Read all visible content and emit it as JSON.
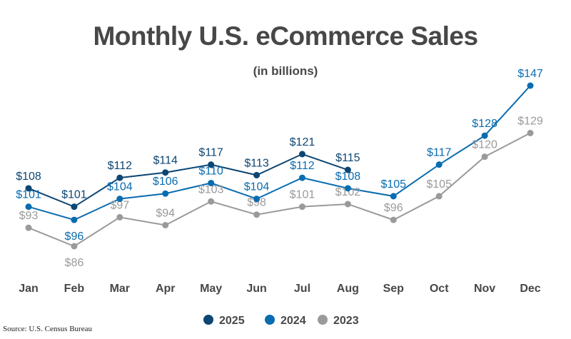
{
  "chart_data": {
    "type": "line",
    "title": "Monthly U.S. eCommerce Sales",
    "subtitle": "(in billions)",
    "source": "Source: U.S. Census Bureau",
    "categories": [
      "Jan",
      "Feb",
      "Mar",
      "Apr",
      "May",
      "Jun",
      "Jul",
      "Aug",
      "Sep",
      "Oct",
      "Nov",
      "Dec"
    ],
    "value_prefix": "$",
    "ylim": [
      86,
      147
    ],
    "grid": false,
    "legend_position": "bottom",
    "series": [
      {
        "name": "2025",
        "color": "#0d4673",
        "values": [
          108,
          101,
          112,
          114,
          117,
          113,
          121,
          115,
          null,
          null,
          null,
          null
        ]
      },
      {
        "name": "2024",
        "color": "#0a6cb0",
        "values": [
          101,
          96,
          104,
          106,
          110,
          104,
          112,
          108,
          105,
          117,
          128,
          147
        ]
      },
      {
        "name": "2023",
        "color": "#9a9a9a",
        "values": [
          93,
          86,
          97,
          94,
          103,
          98,
          101,
          102,
          96,
          105,
          120,
          129
        ]
      }
    ]
  }
}
